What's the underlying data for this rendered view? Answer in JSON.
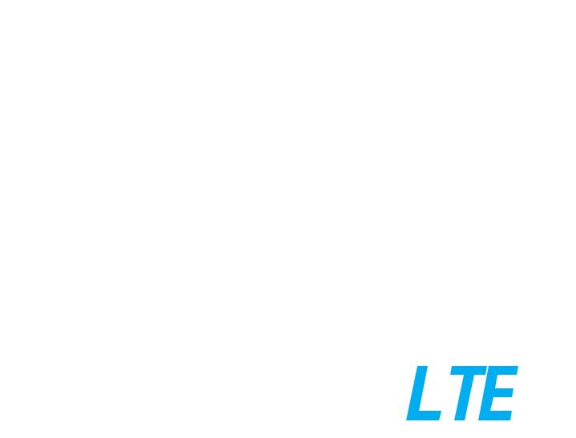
{
  "logo": {
    "text": "LTE",
    "icon": "lte-wordmark-icon",
    "color": "#00aeef"
  },
  "background_color": "#ffffff"
}
